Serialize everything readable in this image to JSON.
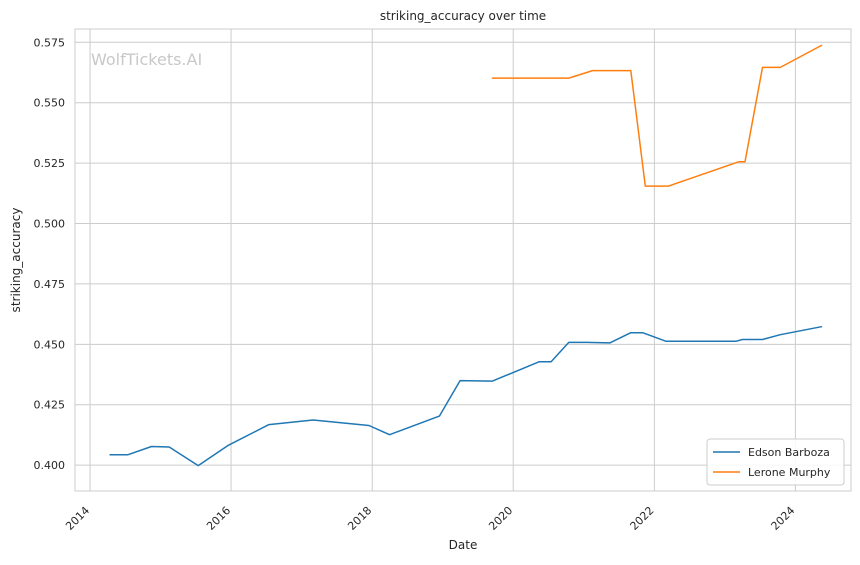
{
  "chart_data": {
    "type": "line",
    "title": "striking_accuracy over time",
    "xlabel": "Date",
    "ylabel": "striking_accuracy",
    "watermark": "WolfTickets.AI",
    "x_ticks": [
      "2014",
      "2016",
      "2018",
      "2020",
      "2022",
      "2024"
    ],
    "y_ticks": [
      "0.400",
      "0.425",
      "0.450",
      "0.475",
      "0.500",
      "0.525",
      "0.550",
      "0.575"
    ],
    "xlim": [
      "2013-10-15",
      "2024-10-15"
    ],
    "ylim": [
      0.3893,
      0.5805
    ],
    "grid": true,
    "legend_position": "lower-right",
    "series": [
      {
        "name": "Edson Barboza",
        "color": "#1f77b4",
        "points": [
          [
            "2014-04-15",
            0.4043
          ],
          [
            "2014-07-15",
            0.4043
          ],
          [
            "2014-11-15",
            0.4077
          ],
          [
            "2015-02-15",
            0.4075
          ],
          [
            "2015-07-15",
            0.3998
          ],
          [
            "2015-12-15",
            0.4081
          ],
          [
            "2016-07-15",
            0.4168
          ],
          [
            "2017-03-01",
            0.4187
          ],
          [
            "2017-12-15",
            0.4164
          ],
          [
            "2018-04-01",
            0.4126
          ],
          [
            "2018-12-15",
            0.4203
          ],
          [
            "2019-04-01",
            0.435
          ],
          [
            "2019-09-15",
            0.4348
          ],
          [
            "2020-05-15",
            0.4428
          ],
          [
            "2020-07-15",
            0.4428
          ],
          [
            "2020-10-15",
            0.4508
          ],
          [
            "2021-01-15",
            0.4508
          ],
          [
            "2021-05-15",
            0.4506
          ],
          [
            "2021-09-01",
            0.4548
          ],
          [
            "2021-11-01",
            0.4548
          ],
          [
            "2022-03-01",
            0.4513
          ],
          [
            "2023-03-01",
            0.4513
          ],
          [
            "2023-04-01",
            0.452
          ],
          [
            "2023-07-15",
            0.452
          ],
          [
            "2023-10-15",
            0.454
          ],
          [
            "2024-05-15",
            0.4573
          ]
        ]
      },
      {
        "name": "Lerone Murphy",
        "color": "#ff7f0e",
        "points": [
          [
            "2019-09-15",
            0.5602
          ],
          [
            "2020-10-15",
            0.5602
          ],
          [
            "2021-02-15",
            0.5633
          ],
          [
            "2021-09-01",
            0.5633
          ],
          [
            "2021-11-15",
            0.5155
          ],
          [
            "2022-03-15",
            0.5155
          ],
          [
            "2023-03-15",
            0.5256
          ],
          [
            "2023-04-15",
            0.5256
          ],
          [
            "2023-07-15",
            0.5646
          ],
          [
            "2023-10-15",
            0.5646
          ],
          [
            "2024-05-15",
            0.5737
          ]
        ]
      }
    ]
  }
}
